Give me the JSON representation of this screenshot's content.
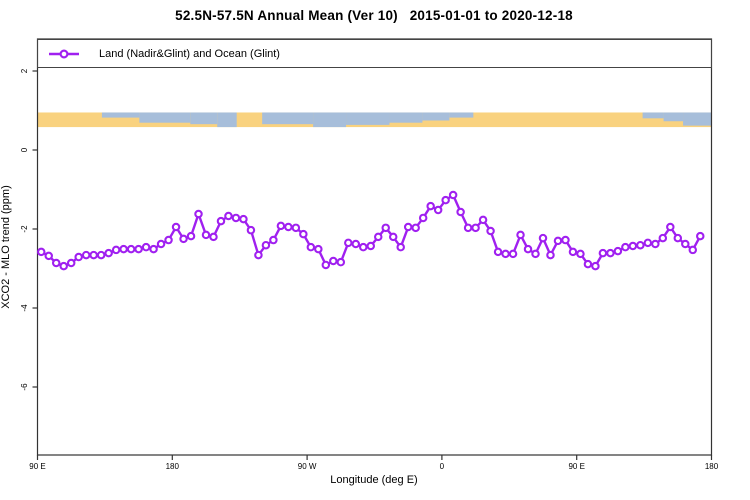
{
  "title": "52.5N-57.5N Annual Mean (Ver 10)   2015-01-01 to 2020-12-18",
  "legend": {
    "label": "Land (Nadir&Glint) and Ocean (Glint)"
  },
  "colors": {
    "series": "#A020F0",
    "marker_fill": "#ffffff",
    "land": "#F9D27F",
    "ocean": "#A7BEDA",
    "axis": "#333333",
    "text": "#000000"
  },
  "chart_data": {
    "type": "line",
    "title": "52.5N-57.5N Annual Mean (Ver 10)   2015-01-01 to 2020-12-18",
    "xlabel": "Longitude (deg E)",
    "ylabel": "XCO2 - MLO trend (ppm)",
    "legend_position": "top-left, full-width box inside plot",
    "grid": false,
    "marker": "open-circle",
    "x_axis_note": "longitude axis wraps: 90E eastward to 180, 90W, 0, 90E, 180 (450 deg total)",
    "x_range_deg": [
      90,
      540
    ],
    "y_range_ppm": [
      -7.7,
      2.85
    ],
    "x_ticks": [
      {
        "deg": 90,
        "label": "90 E"
      },
      {
        "deg": 180,
        "label": "180"
      },
      {
        "deg": 270,
        "label": "90 W"
      },
      {
        "deg": 360,
        "label": "0"
      },
      {
        "deg": 450,
        "label": "90 E"
      },
      {
        "deg": 540,
        "label": "180"
      }
    ],
    "y_ticks": [
      {
        "v": 2,
        "label": "2"
      },
      {
        "v": 0,
        "label": "0"
      },
      {
        "v": -2,
        "label": "-2"
      },
      {
        "v": -4,
        "label": "-4"
      },
      {
        "v": -6,
        "label": "-6"
      }
    ],
    "series": [
      {
        "name": "Land (Nadir&Glint) and Ocean (Glint)",
        "x_start_deg": 92.5,
        "x_step_deg": 5,
        "values": [
          -2.58,
          -2.68,
          -2.86,
          -2.94,
          -2.86,
          -2.71,
          -2.66,
          -2.66,
          -2.66,
          -2.61,
          -2.53,
          -2.51,
          -2.51,
          -2.51,
          -2.46,
          -2.51,
          -2.38,
          -2.28,
          -1.95,
          -2.25,
          -2.18,
          -1.62,
          -2.15,
          -2.2,
          -1.8,
          -1.67,
          -1.72,
          -1.75,
          -2.03,
          -2.66,
          -2.41,
          -2.28,
          -1.92,
          -1.95,
          -1.97,
          -2.13,
          -2.46,
          -2.51,
          -2.91,
          -2.81,
          -2.84,
          -2.35,
          -2.38,
          -2.46,
          -2.43,
          -2.2,
          -1.97,
          -2.2,
          -2.46,
          -1.95,
          -1.97,
          -1.72,
          -1.42,
          -1.52,
          -1.27,
          -1.14,
          -1.57,
          -1.97,
          -1.97,
          -1.77,
          -2.05,
          -2.58,
          -2.63,
          -2.63,
          -2.15,
          -2.51,
          -2.63,
          -2.23,
          -2.66,
          -2.3,
          -2.28,
          -2.58,
          -2.63,
          -2.89,
          -2.94,
          -2.61,
          -2.61,
          -2.56,
          -2.46,
          -2.43,
          -2.41,
          -2.35,
          -2.38,
          -2.23,
          -1.95,
          -2.23,
          -2.38,
          -2.53,
          -2.18
        ]
      }
    ],
    "land_ocean_band": {
      "description": "map strip of the 52.5N-57.5N latitude band: land=yellow, ocean=blue",
      "ppm_top": 0.95,
      "ppm_bottom": 0.58,
      "base": "land",
      "ocean_segments": [
        {
          "from": 133,
          "to": 158,
          "frac": 0.35
        },
        {
          "from": 158,
          "to": 192,
          "frac": 0.7
        },
        {
          "from": 192,
          "to": 210,
          "frac": 0.8
        },
        {
          "from": 210,
          "to": 223,
          "frac": 1.0
        },
        {
          "from": 240,
          "to": 274,
          "frac": 0.8
        },
        {
          "from": 274,
          "to": 296,
          "frac": 1.0
        },
        {
          "from": 296,
          "to": 325,
          "frac": 0.85
        },
        {
          "from": 325,
          "to": 347,
          "frac": 0.7
        },
        {
          "from": 347,
          "to": 365,
          "frac": 0.55
        },
        {
          "from": 365,
          "to": 381,
          "frac": 0.35
        },
        {
          "from": 494,
          "to": 508,
          "frac": 0.4
        },
        {
          "from": 508,
          "to": 521,
          "frac": 0.6
        },
        {
          "from": 521,
          "to": 540,
          "frac": 0.9
        }
      ]
    }
  }
}
